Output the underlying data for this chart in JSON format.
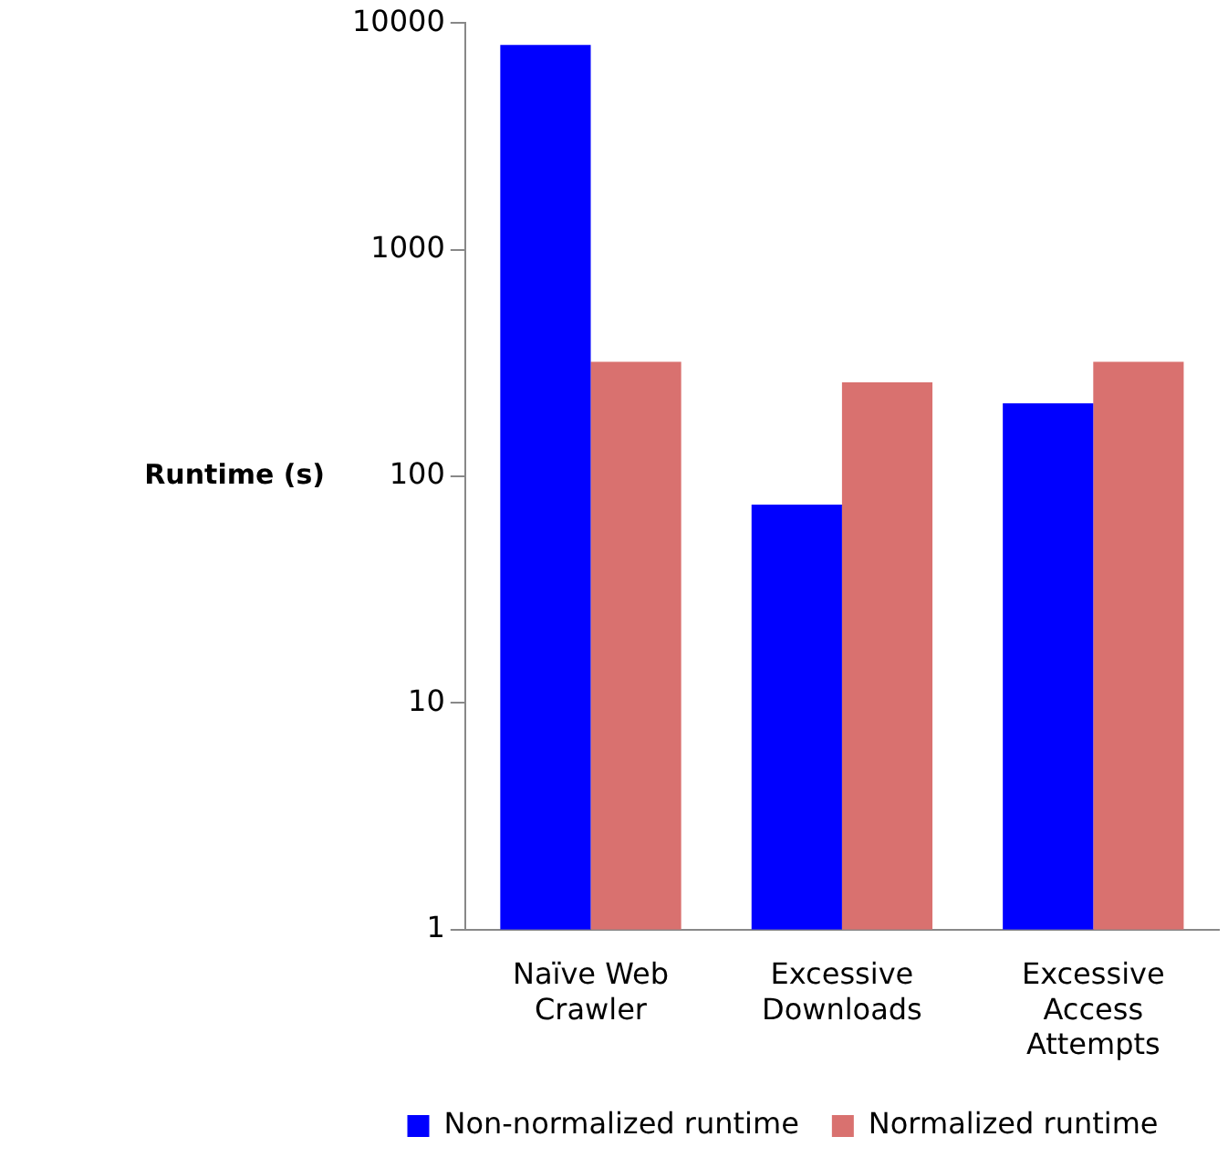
{
  "chart_data": {
    "type": "bar",
    "ylabel": "Runtime (s)",
    "categories": [
      "Naïve Web Crawler",
      "Excessive Downloads",
      "Excessive Access Attempts"
    ],
    "series": [
      {
        "name": "Non-normalized runtime",
        "color": "#0000ff",
        "values": [
          8000,
          75,
          210
        ]
      },
      {
        "name": "Normalized runtime",
        "color": "#d9716f",
        "values": [
          320,
          260,
          320
        ]
      }
    ],
    "log": "y",
    "ylim": [
      1,
      10000
    ],
    "yticks": [
      1,
      10,
      100,
      1000,
      10000
    ],
    "grid": false,
    "legend": "bottom"
  }
}
